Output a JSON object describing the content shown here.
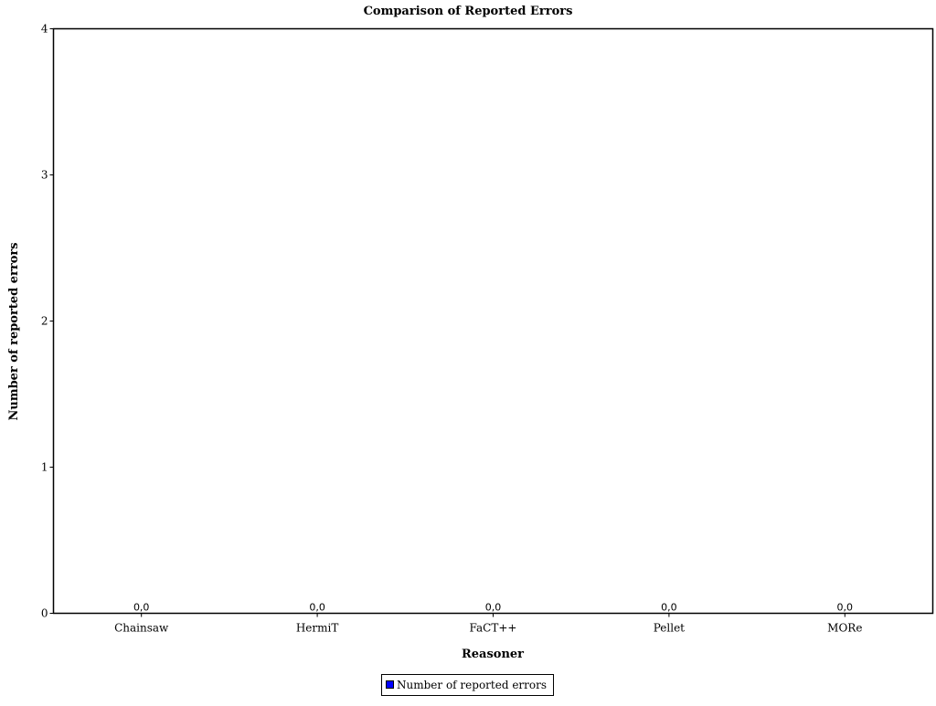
{
  "chart_data": {
    "type": "bar",
    "title": "Comparison of Reported Errors",
    "xlabel": "Reasoner",
    "ylabel": "Number of reported errors",
    "categories": [
      "Chainsaw",
      "HermiT",
      "FaCT++",
      "Pellet",
      "MORe"
    ],
    "series": [
      {
        "name": "Number of reported errors",
        "values": [
          0,
          0,
          0,
          0,
          0
        ],
        "value_labels": [
          "0,0",
          "0,0",
          "0,0",
          "0,0",
          "0,0"
        ],
        "color": "#0000ff"
      }
    ],
    "ylim": [
      0,
      4
    ],
    "yticks": [
      "0",
      "1",
      "2",
      "3",
      "4"
    ],
    "grid": false,
    "legend_position": "bottom"
  }
}
